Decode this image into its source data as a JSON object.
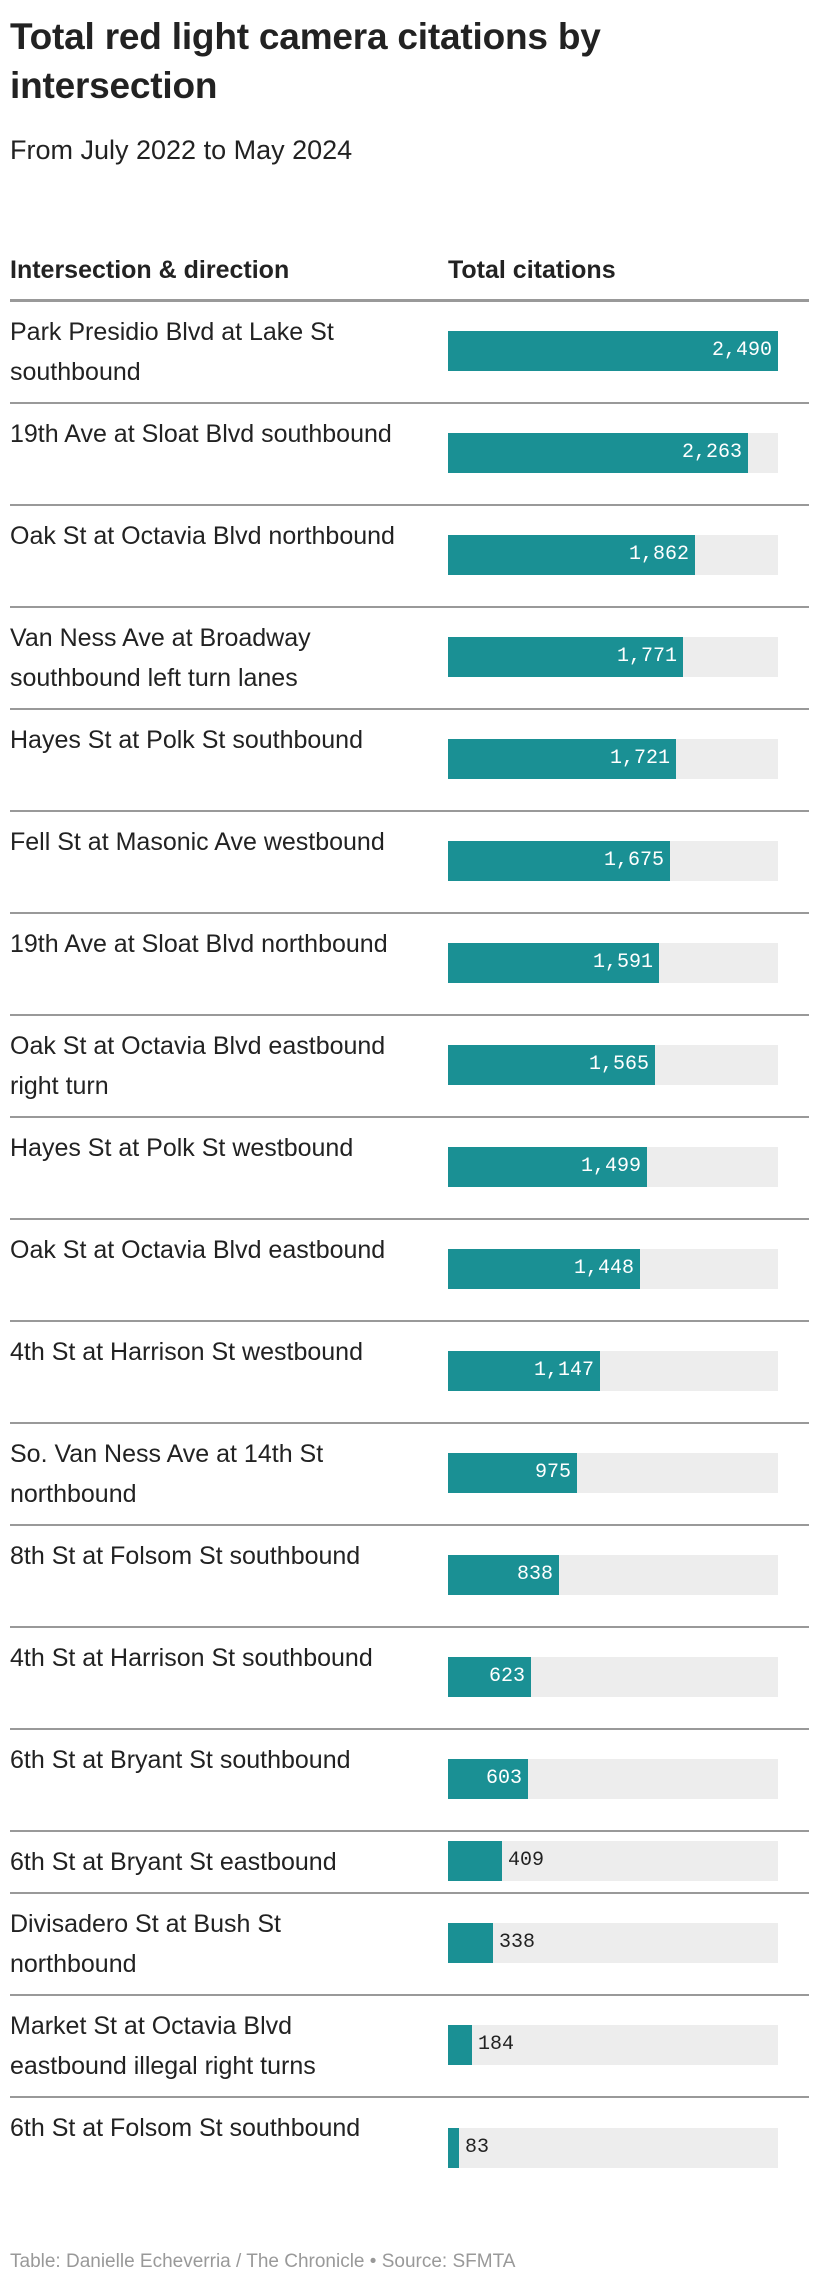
{
  "header": {
    "title": "Total red light camera citations by intersection",
    "subtitle": "From July 2022 to May 2024"
  },
  "table": {
    "columns": [
      "Intersection & direction",
      "Total citations"
    ],
    "bar_color": "#1a9094",
    "track_color": "#ededed",
    "max_value": 2490,
    "rows": [
      {
        "label": "Park Presidio Blvd at Lake St southbound",
        "value": 2490,
        "display": "2,490"
      },
      {
        "label": "19th Ave at Sloat Blvd southbound",
        "value": 2263,
        "display": "2,263"
      },
      {
        "label": "Oak St at Octavia Blvd northbound",
        "value": 1862,
        "display": "1,862"
      },
      {
        "label": "Van Ness Ave at Broadway southbound left turn lanes",
        "value": 1771,
        "display": "1,771"
      },
      {
        "label": "Hayes St at Polk St southbound",
        "value": 1721,
        "display": "1,721"
      },
      {
        "label": "Fell St at Masonic Ave westbound",
        "value": 1675,
        "display": "1,675"
      },
      {
        "label": "19th Ave at Sloat Blvd northbound",
        "value": 1591,
        "display": "1,591"
      },
      {
        "label": "Oak St at Octavia Blvd eastbound right turn",
        "value": 1565,
        "display": "1,565"
      },
      {
        "label": "Hayes St at Polk St westbound",
        "value": 1499,
        "display": "1,499"
      },
      {
        "label": "Oak St at Octavia Blvd eastbound",
        "value": 1448,
        "display": "1,448"
      },
      {
        "label": "4th St at Harrison St westbound",
        "value": 1147,
        "display": "1,147"
      },
      {
        "label": "So. Van Ness Ave at 14th St northbound",
        "value": 975,
        "display": "975"
      },
      {
        "label": "8th St at Folsom St southbound",
        "value": 838,
        "display": "838"
      },
      {
        "label": "4th St at Harrison St southbound",
        "value": 623,
        "display": "623"
      },
      {
        "label": "6th St at Bryant St southbound",
        "value": 603,
        "display": "603"
      },
      {
        "label": "6th St at Bryant St eastbound",
        "value": 409,
        "display": "409"
      },
      {
        "label": "Divisadero St at Bush St northbound",
        "value": 338,
        "display": "338"
      },
      {
        "label": "Market St at Octavia Blvd eastbound illegal right turns",
        "value": 184,
        "display": "184"
      },
      {
        "label": "6th St at Folsom St southbound",
        "value": 83,
        "display": "83"
      }
    ]
  },
  "footer": {
    "credit": "Table: Danielle Echeverria / The Chronicle • Source: SFMTA"
  },
  "chart_data": {
    "type": "bar",
    "orientation": "horizontal",
    "title": "Total red light camera citations by intersection",
    "subtitle": "From July 2022 to May 2024",
    "xlabel": "Total citations",
    "ylabel": "Intersection & direction",
    "categories": [
      "Park Presidio Blvd at Lake St southbound",
      "19th Ave at Sloat Blvd southbound",
      "Oak St at Octavia Blvd northbound",
      "Van Ness Ave at Broadway southbound left turn lanes",
      "Hayes St at Polk St southbound",
      "Fell St at Masonic Ave westbound",
      "19th Ave at Sloat Blvd northbound",
      "Oak St at Octavia Blvd eastbound right turn",
      "Hayes St at Polk St westbound",
      "Oak St at Octavia Blvd eastbound",
      "4th St at Harrison St westbound",
      "So. Van Ness Ave at 14th St northbound",
      "8th St at Folsom St southbound",
      "4th St at Harrison St southbound",
      "6th St at Bryant St southbound",
      "6th St at Bryant St eastbound",
      "Divisadero St at Bush St northbound",
      "Market St at Octavia Blvd eastbound illegal right turns",
      "6th St at Folsom St southbound"
    ],
    "values": [
      2490,
      2263,
      1862,
      1771,
      1721,
      1675,
      1591,
      1565,
      1499,
      1448,
      1147,
      975,
      838,
      623,
      603,
      409,
      338,
      184,
      83
    ],
    "xlim": [
      0,
      2490
    ],
    "grid": false,
    "legend": "none",
    "source": "Table: Danielle Echeverria / The Chronicle • Source: SFMTA"
  }
}
